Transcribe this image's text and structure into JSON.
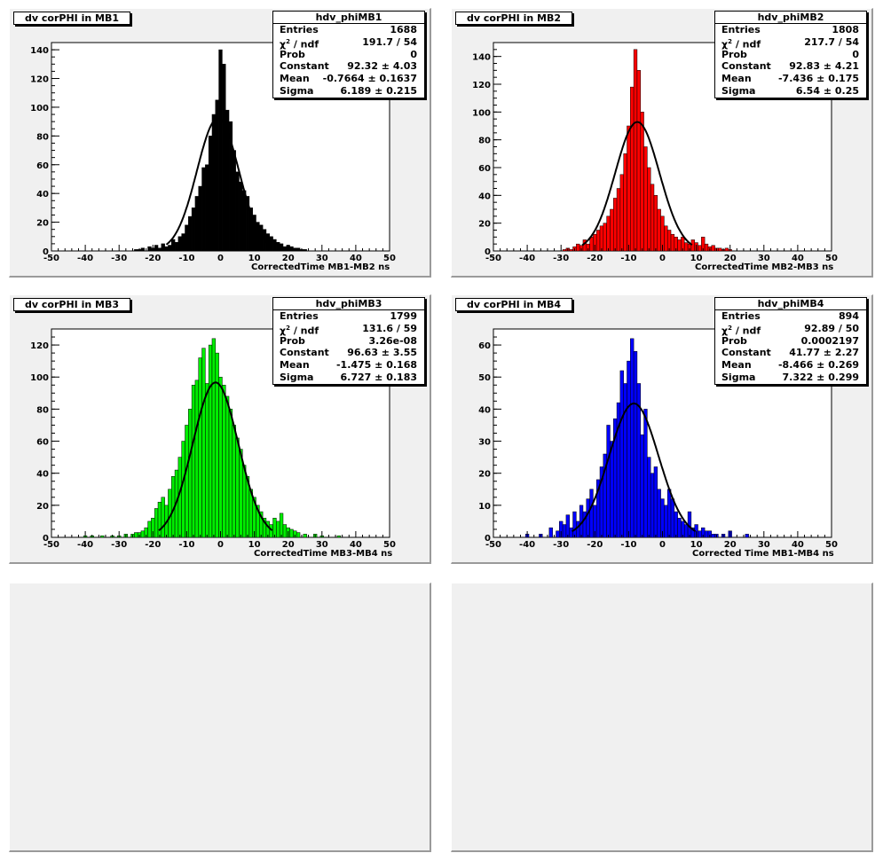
{
  "pads": [
    {
      "title": "dv corPHI in MB1",
      "stats": {
        "name": "hdv_phiMB1",
        "entries": "1688",
        "chi2_label": "/ ndf",
        "chi2": "191.7 / 54",
        "prob": "0",
        "constant": "92.32 ± 4.03",
        "mean": "-0.7664 ± 0.1637",
        "sigma": "6.189 ± 0.215"
      },
      "xtitle": "CorrectedTime MB1-MB2   ns"
    },
    {
      "title": "dv corPHI in MB2",
      "stats": {
        "name": "hdv_phiMB2",
        "entries": "1808",
        "chi2_label": "/ ndf",
        "chi2": "217.7 / 54",
        "prob": "0",
        "constant": "92.83 ± 4.21",
        "mean": "-7.436 ± 0.175",
        "sigma": "6.54 ± 0.25"
      },
      "xtitle": "CorrectedTime MB2-MB3   ns"
    },
    {
      "title": "dv corPHI in MB3",
      "stats": {
        "name": "hdv_phiMB3",
        "entries": "1799",
        "chi2_label": "/ ndf",
        "chi2": "131.6 / 59",
        "prob": "3.26e-08",
        "constant": "96.63 ± 3.55",
        "mean": "-1.475 ± 0.168",
        "sigma": "6.727 ± 0.183"
      },
      "xtitle": "CorrectedTime MB3-MB4   ns"
    },
    {
      "title": "dv corPHI in MB4",
      "stats": {
        "name": "hdv_phiMB4",
        "entries": "894",
        "chi2_label": "/ ndf",
        "chi2": "92.89 / 50",
        "prob": "0.0002197",
        "constant": "41.77 ± 2.27",
        "mean": "-8.466 ± 0.269",
        "sigma": "7.322 ± 0.299"
      },
      "xtitle": "Corrected Time MB1-MB4   ns"
    }
  ],
  "stat_labels": {
    "entries": "Entries",
    "chi2_symbol": "χ",
    "chi2_exp": "2",
    "prob": "Prob",
    "constant": "Constant",
    "mean": "Mean",
    "sigma": "Sigma"
  },
  "chart_data": [
    {
      "type": "bar",
      "fill_color": "#000000",
      "xlim": [
        -50,
        50
      ],
      "ylim": [
        0,
        145
      ],
      "xticks": [
        -50,
        -40,
        -30,
        -20,
        -10,
        0,
        10,
        20,
        30,
        40,
        50
      ],
      "yticks": [
        0,
        20,
        40,
        60,
        80,
        100,
        120,
        140
      ],
      "fit": {
        "constant": 92.32,
        "mean": -0.7664,
        "sigma": 6.189
      },
      "bin_width": 1,
      "x": [
        -25,
        -24,
        -23,
        -22,
        -21,
        -20,
        -19,
        -18,
        -17,
        -16,
        -15,
        -14,
        -13,
        -12,
        -11,
        -10,
        -9,
        -8,
        -7,
        -6,
        -5,
        -4,
        -3,
        -2,
        -1,
        0,
        1,
        2,
        3,
        4,
        5,
        6,
        7,
        8,
        9,
        10,
        11,
        12,
        13,
        14,
        15,
        16,
        17,
        18,
        19,
        20,
        21,
        22,
        23,
        24,
        25
      ],
      "values": [
        1,
        1,
        2,
        0,
        3,
        2,
        4,
        2,
        5,
        3,
        4,
        8,
        6,
        10,
        12,
        18,
        24,
        30,
        38,
        45,
        58,
        60,
        80,
        95,
        105,
        140,
        130,
        98,
        90,
        70,
        55,
        48,
        42,
        38,
        30,
        25,
        20,
        18,
        15,
        12,
        10,
        8,
        6,
        5,
        3,
        4,
        3,
        2,
        2,
        1,
        1
      ]
    },
    {
      "type": "bar",
      "fill_color": "#ff0000",
      "xlim": [
        -50,
        50
      ],
      "ylim": [
        0,
        150
      ],
      "xticks": [
        -50,
        -40,
        -30,
        -20,
        -10,
        0,
        10,
        20,
        30,
        40,
        50
      ],
      "yticks": [
        0,
        20,
        40,
        60,
        80,
        100,
        120,
        140
      ],
      "fit": {
        "constant": 92.83,
        "mean": -7.436,
        "sigma": 6.54
      },
      "bin_width": 1,
      "x": [
        -29,
        -28,
        -27,
        -26,
        -25,
        -24,
        -23,
        -22,
        -21,
        -20,
        -19,
        -18,
        -17,
        -16,
        -15,
        -14,
        -13,
        -12,
        -11,
        -10,
        -9,
        -8,
        -7,
        -6,
        -5,
        -4,
        -3,
        -2,
        -1,
        0,
        1,
        2,
        3,
        4,
        5,
        6,
        7,
        8,
        9,
        10,
        11,
        12,
        13,
        14,
        15,
        16,
        17,
        18,
        19,
        20
      ],
      "values": [
        1,
        2,
        1,
        3,
        5,
        4,
        8,
        5,
        10,
        12,
        15,
        18,
        20,
        25,
        30,
        38,
        45,
        55,
        70,
        90,
        118,
        145,
        130,
        100,
        75,
        60,
        48,
        40,
        30,
        25,
        18,
        15,
        12,
        10,
        8,
        10,
        6,
        5,
        8,
        6,
        4,
        10,
        5,
        3,
        4,
        2,
        2,
        1,
        2,
        1
      ]
    },
    {
      "type": "bar",
      "fill_color": "#00ee00",
      "xlim": [
        -50,
        50
      ],
      "ylim": [
        0,
        130
      ],
      "xticks": [
        -50,
        -40,
        -30,
        -20,
        -10,
        0,
        10,
        20,
        30,
        40,
        50
      ],
      "yticks": [
        0,
        20,
        40,
        60,
        80,
        100,
        120
      ],
      "fit": {
        "constant": 96.63,
        "mean": -1.475,
        "sigma": 6.727
      },
      "bin_width": 1,
      "x": [
        -40,
        -38,
        -35,
        -32,
        -30,
        -28,
        -26,
        -25,
        -24,
        -23,
        -22,
        -21,
        -20,
        -19,
        -18,
        -17,
        -16,
        -15,
        -14,
        -13,
        -12,
        -11,
        -10,
        -9,
        -8,
        -7,
        -6,
        -5,
        -4,
        -3,
        -2,
        -1,
        0,
        1,
        2,
        3,
        4,
        5,
        6,
        7,
        8,
        9,
        10,
        11,
        12,
        13,
        14,
        15,
        16,
        17,
        18,
        19,
        20,
        21,
        22,
        23,
        25,
        28,
        30,
        35
      ],
      "values": [
        1,
        1,
        1,
        1,
        1,
        2,
        2,
        3,
        3,
        4,
        6,
        10,
        12,
        18,
        22,
        25,
        20,
        30,
        38,
        42,
        50,
        60,
        70,
        80,
        95,
        98,
        112,
        118,
        96,
        120,
        124,
        115,
        100,
        95,
        88,
        80,
        70,
        62,
        55,
        45,
        38,
        30,
        25,
        20,
        16,
        12,
        10,
        8,
        12,
        10,
        15,
        8,
        6,
        5,
        4,
        3,
        2,
        2,
        1,
        1
      ]
    },
    {
      "type": "bar",
      "fill_color": "#0000ff",
      "xlim": [
        -50,
        50
      ],
      "ylim": [
        0,
        65
      ],
      "xticks": [
        -50,
        -40,
        -30,
        -20,
        -10,
        0,
        10,
        20,
        30,
        40,
        50
      ],
      "yticks": [
        0,
        10,
        20,
        30,
        40,
        50,
        60
      ],
      "fit": {
        "constant": 41.77,
        "mean": -8.466,
        "sigma": 7.322
      },
      "bin_width": 1,
      "x": [
        -40,
        -36,
        -33,
        -31,
        -30,
        -29,
        -28,
        -27,
        -26,
        -25,
        -24,
        -23,
        -22,
        -21,
        -20,
        -19,
        -18,
        -17,
        -16,
        -15,
        -14,
        -13,
        -12,
        -11,
        -10,
        -9,
        -8,
        -7,
        -6,
        -5,
        -4,
        -3,
        -2,
        -1,
        0,
        1,
        2,
        3,
        4,
        5,
        6,
        7,
        8,
        9,
        10,
        11,
        12,
        13,
        14,
        15,
        16,
        18,
        20,
        25
      ],
      "values": [
        1,
        1,
        3,
        2,
        5,
        4,
        7,
        3,
        8,
        5,
        10,
        8,
        12,
        15,
        10,
        18,
        22,
        26,
        35,
        30,
        37,
        42,
        52,
        48,
        55,
        62,
        58,
        48,
        32,
        40,
        25,
        20,
        22,
        15,
        12,
        10,
        15,
        12,
        8,
        6,
        5,
        4,
        8,
        3,
        4,
        2,
        3,
        2,
        2,
        1,
        1,
        1,
        2,
        1
      ]
    }
  ]
}
